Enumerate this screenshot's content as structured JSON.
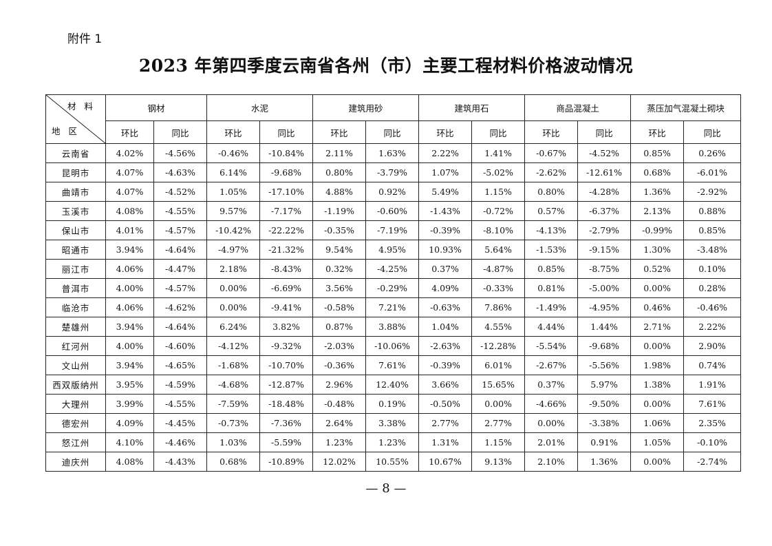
{
  "attachment": "附件 1",
  "title": "2023 年第四季度云南省各州（市）主要工程材料价格波动情况",
  "header": {
    "material_label": "材 料",
    "region_label": "地 区",
    "groups": [
      "钢材",
      "水泥",
      "建筑用砂",
      "建筑用石",
      "商品混凝土",
      "蒸压加气混凝土砌块"
    ],
    "sub": [
      "环比",
      "同比"
    ]
  },
  "rows": [
    {
      "region": "云南省",
      "values": [
        "4.02%",
        "-4.56%",
        "-0.46%",
        "-10.84%",
        "2.11%",
        "1.63%",
        "2.22%",
        "1.41%",
        "-0.67%",
        "-4.52%",
        "0.85%",
        "0.26%"
      ]
    },
    {
      "region": "昆明市",
      "values": [
        "4.07%",
        "-4.63%",
        "6.14%",
        "-9.68%",
        "0.80%",
        "-3.79%",
        "1.07%",
        "-5.02%",
        "-2.62%",
        "-12.61%",
        "0.68%",
        "-6.01%"
      ]
    },
    {
      "region": "曲靖市",
      "values": [
        "4.07%",
        "-4.52%",
        "1.05%",
        "-17.10%",
        "4.88%",
        "0.92%",
        "5.49%",
        "1.15%",
        "0.80%",
        "-4.28%",
        "1.36%",
        "-2.92%"
      ]
    },
    {
      "region": "玉溪市",
      "values": [
        "4.08%",
        "-4.55%",
        "9.57%",
        "-7.17%",
        "-1.19%",
        "-0.60%",
        "-1.43%",
        "-0.72%",
        "0.57%",
        "-6.37%",
        "2.13%",
        "0.88%"
      ]
    },
    {
      "region": "保山市",
      "values": [
        "4.01%",
        "-4.57%",
        "-10.42%",
        "-22.22%",
        "-0.35%",
        "-7.19%",
        "-0.39%",
        "-8.10%",
        "-4.13%",
        "-2.79%",
        "-0.99%",
        "0.85%"
      ]
    },
    {
      "region": "昭通市",
      "values": [
        "3.94%",
        "-4.64%",
        "-4.97%",
        "-21.32%",
        "9.54%",
        "4.95%",
        "10.93%",
        "5.64%",
        "-1.53%",
        "-9.15%",
        "1.30%",
        "-3.48%"
      ]
    },
    {
      "region": "丽江市",
      "values": [
        "4.06%",
        "-4.47%",
        "2.18%",
        "-8.43%",
        "0.32%",
        "-4.25%",
        "0.37%",
        "-4.87%",
        "0.85%",
        "-8.75%",
        "0.52%",
        "0.10%"
      ]
    },
    {
      "region": "普洱市",
      "values": [
        "4.00%",
        "-4.57%",
        "0.00%",
        "-6.69%",
        "3.56%",
        "-0.29%",
        "4.09%",
        "-0.33%",
        "0.81%",
        "-5.00%",
        "0.00%",
        "0.28%"
      ]
    },
    {
      "region": "临沧市",
      "values": [
        "4.06%",
        "-4.62%",
        "0.00%",
        "-9.41%",
        "-0.58%",
        "7.21%",
        "-0.63%",
        "7.86%",
        "-1.49%",
        "-4.95%",
        "0.46%",
        "-0.46%"
      ]
    },
    {
      "region": "楚雄州",
      "values": [
        "3.94%",
        "-4.64%",
        "6.24%",
        "3.82%",
        "0.87%",
        "3.88%",
        "1.04%",
        "4.55%",
        "4.44%",
        "1.44%",
        "2.71%",
        "2.22%"
      ]
    },
    {
      "region": "红河州",
      "values": [
        "4.00%",
        "-4.60%",
        "-4.12%",
        "-9.32%",
        "-2.03%",
        "-10.06%",
        "-2.63%",
        "-12.28%",
        "-5.54%",
        "-9.68%",
        "0.00%",
        "2.90%"
      ]
    },
    {
      "region": "文山州",
      "values": [
        "3.94%",
        "-4.65%",
        "-1.68%",
        "-10.70%",
        "-0.36%",
        "7.61%",
        "-0.39%",
        "6.01%",
        "-2.67%",
        "-5.56%",
        "1.98%",
        "0.74%"
      ]
    },
    {
      "region": "西双版纳州",
      "values": [
        "3.95%",
        "-4.59%",
        "-4.68%",
        "-12.87%",
        "2.96%",
        "12.40%",
        "3.66%",
        "15.65%",
        "0.37%",
        "5.97%",
        "1.38%",
        "1.91%"
      ]
    },
    {
      "region": "大理州",
      "values": [
        "3.99%",
        "-4.55%",
        "-7.59%",
        "-18.48%",
        "-0.48%",
        "0.19%",
        "-0.50%",
        "0.00%",
        "-4.66%",
        "-9.50%",
        "0.00%",
        "7.61%"
      ]
    },
    {
      "region": "德宏州",
      "values": [
        "4.09%",
        "-4.45%",
        "-0.73%",
        "-7.36%",
        "2.64%",
        "3.38%",
        "2.77%",
        "2.77%",
        "0.00%",
        "-3.38%",
        "1.06%",
        "2.35%"
      ]
    },
    {
      "region": "怒江州",
      "values": [
        "4.10%",
        "-4.46%",
        "1.03%",
        "-5.59%",
        "1.23%",
        "1.23%",
        "1.31%",
        "1.15%",
        "2.01%",
        "0.91%",
        "1.05%",
        "-0.10%"
      ]
    },
    {
      "region": "迪庆州",
      "values": [
        "4.08%",
        "-4.43%",
        "0.68%",
        "-10.89%",
        "12.02%",
        "10.55%",
        "10.67%",
        "9.13%",
        "2.10%",
        "1.36%",
        "0.00%",
        "-2.74%"
      ]
    }
  ],
  "page_number": "— 8 —"
}
